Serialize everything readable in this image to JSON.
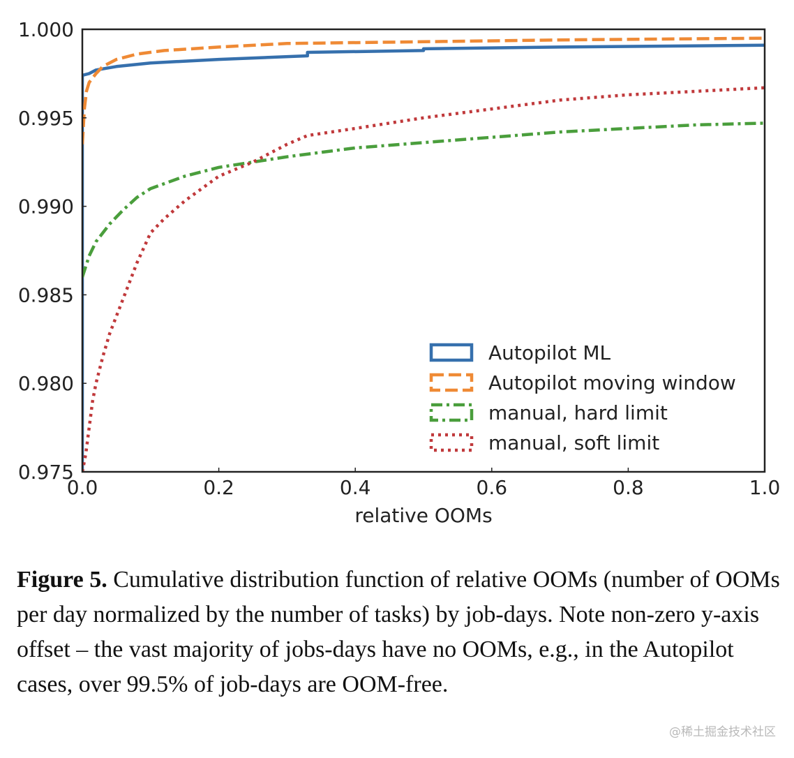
{
  "chart_data": {
    "type": "line",
    "title": "",
    "xlabel": "relative OOMs",
    "ylabel": "",
    "xlim": [
      0.0,
      1.0
    ],
    "ylim": [
      0.975,
      1.0
    ],
    "x_ticks": [
      "0.0",
      "0.2",
      "0.4",
      "0.6",
      "0.8",
      "1.0"
    ],
    "x_tick_values": [
      0.0,
      0.2,
      0.4,
      0.6,
      0.8,
      1.0
    ],
    "y_ticks": [
      "0.975",
      "0.980",
      "0.985",
      "0.990",
      "0.995",
      "1.000"
    ],
    "y_tick_values": [
      0.975,
      0.98,
      0.985,
      0.99,
      0.995,
      1.0
    ],
    "grid": false,
    "legend_position": "bottom-right",
    "series": [
      {
        "name": "Autopilot ML",
        "color": "#3670ad",
        "style": "solid",
        "points": [
          [
            0.0,
            0.975
          ],
          [
            0.0,
            0.9974
          ],
          [
            0.01,
            0.9975
          ],
          [
            0.02,
            0.9977
          ],
          [
            0.05,
            0.9979
          ],
          [
            0.1,
            0.9981
          ],
          [
            0.2,
            0.9983
          ],
          [
            0.33,
            0.9985
          ],
          [
            0.33,
            0.9987
          ],
          [
            0.5,
            0.9988
          ],
          [
            0.5,
            0.9989
          ],
          [
            0.7,
            0.999
          ],
          [
            1.0,
            0.9991
          ]
        ]
      },
      {
        "name": "Autopilot moving window",
        "color": "#ef8a35",
        "style": "dashed",
        "points": [
          [
            0.0,
            0.9935
          ],
          [
            0.003,
            0.9955
          ],
          [
            0.006,
            0.9965
          ],
          [
            0.01,
            0.997
          ],
          [
            0.02,
            0.9975
          ],
          [
            0.03,
            0.9979
          ],
          [
            0.05,
            0.9983
          ],
          [
            0.08,
            0.9986
          ],
          [
            0.12,
            0.9988
          ],
          [
            0.2,
            0.999
          ],
          [
            0.3,
            0.9992
          ],
          [
            0.5,
            0.9993
          ],
          [
            0.7,
            0.9994
          ],
          [
            1.0,
            0.9995
          ]
        ]
      },
      {
        "name": "manual, hard limit",
        "color": "#4a9e3c",
        "style": "dashdot",
        "points": [
          [
            0.0,
            0.986
          ],
          [
            0.005,
            0.9866
          ],
          [
            0.01,
            0.9872
          ],
          [
            0.02,
            0.988
          ],
          [
            0.04,
            0.989
          ],
          [
            0.06,
            0.9898
          ],
          [
            0.08,
            0.9905
          ],
          [
            0.1,
            0.991
          ],
          [
            0.15,
            0.9917
          ],
          [
            0.2,
            0.9922
          ],
          [
            0.25,
            0.9925
          ],
          [
            0.3,
            0.9928
          ],
          [
            0.4,
            0.9933
          ],
          [
            0.5,
            0.9936
          ],
          [
            0.6,
            0.9939
          ],
          [
            0.7,
            0.9942
          ],
          [
            0.8,
            0.9944
          ],
          [
            0.9,
            0.9946
          ],
          [
            1.0,
            0.9947
          ]
        ]
      },
      {
        "name": "manual, soft limit",
        "color": "#c0393b",
        "style": "dotted",
        "points": [
          [
            0.0,
            0.975
          ],
          [
            0.005,
            0.976
          ],
          [
            0.01,
            0.9775
          ],
          [
            0.015,
            0.979
          ],
          [
            0.02,
            0.98
          ],
          [
            0.03,
            0.9815
          ],
          [
            0.04,
            0.9828
          ],
          [
            0.05,
            0.9838
          ],
          [
            0.06,
            0.9848
          ],
          [
            0.07,
            0.9858
          ],
          [
            0.08,
            0.9868
          ],
          [
            0.1,
            0.9885
          ],
          [
            0.12,
            0.9893
          ],
          [
            0.15,
            0.9903
          ],
          [
            0.2,
            0.9917
          ],
          [
            0.25,
            0.9925
          ],
          [
            0.3,
            0.9935
          ],
          [
            0.33,
            0.994
          ],
          [
            0.4,
            0.9944
          ],
          [
            0.5,
            0.995
          ],
          [
            0.6,
            0.9955
          ],
          [
            0.7,
            0.996
          ],
          [
            0.8,
            0.9963
          ],
          [
            0.9,
            0.9965
          ],
          [
            1.0,
            0.9967
          ]
        ]
      }
    ]
  },
  "caption": {
    "label": "Figure 5.",
    "text": " Cumulative distribution function of relative OOMs (number of OOMs per day normalized by the number of tasks) by job-days. Note non-zero y-axis offset – the vast majority of jobs-days have no OOMs, e.g., in the Autopilot cases, over 99.5% of job-days are OOM-free."
  },
  "watermark": "@稀土掘金技术社区"
}
